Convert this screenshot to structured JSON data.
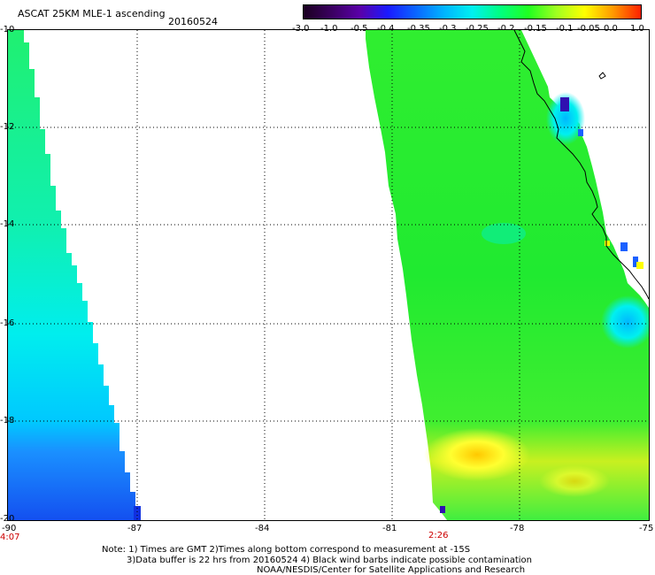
{
  "title": "ASCAT 25KM MLE-1 ascending",
  "date": "20160524",
  "colorbar": {
    "ticks": [
      "-3.0",
      "-1.0",
      "-0.5",
      "-0.4",
      "-0.35",
      "-0.3",
      "-0.25",
      "-0.2",
      "-0.15",
      "-0.1",
      "-0.05",
      "0.0",
      "1.0"
    ],
    "colors": [
      "#1a0020",
      "#3a0060",
      "#5a00a8",
      "#1a1aff",
      "#0a66ff",
      "#00b4ff",
      "#00f0f0",
      "#00ff80",
      "#20ff20",
      "#a0ff20",
      "#ffff00",
      "#ff9a00",
      "#ff2000"
    ]
  },
  "map": {
    "lat_labels": [
      "-10",
      "-12",
      "-14",
      "-16",
      "-18",
      "-20"
    ],
    "lon_labels": [
      "-90",
      "-87",
      "-84",
      "-81",
      "-78",
      "-75"
    ],
    "times": [
      "4:07",
      "2:26"
    ]
  },
  "notes": {
    "line1": "Note: 1) Times are GMT 2)Times along bottom correspond to measurement at -15S",
    "line2": "3)Data buffer is 22 hrs from 20160524 4) Black wind barbs indicate possible contamination",
    "line3": "NOAA/NESDIS/Center for Satellite Applications and Research"
  }
}
